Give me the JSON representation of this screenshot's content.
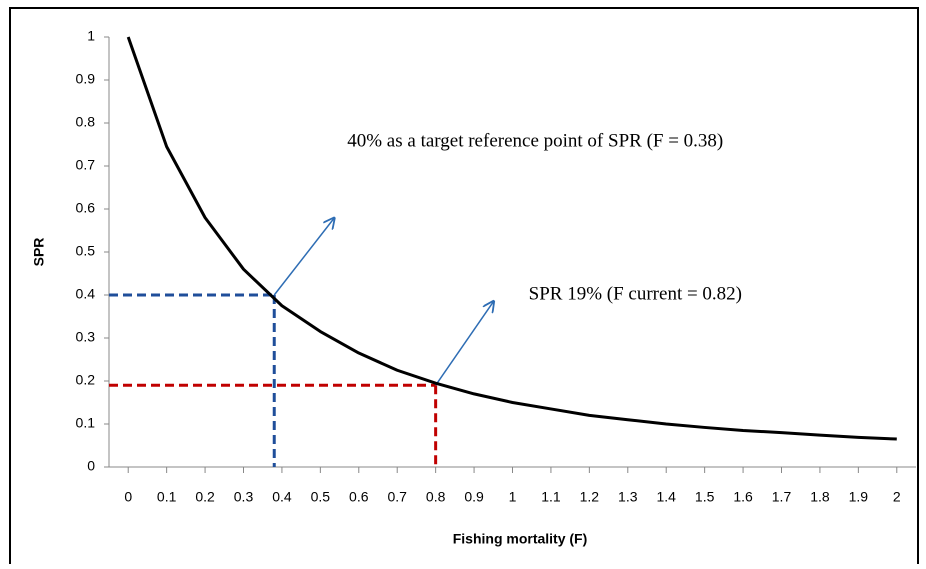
{
  "chart_data": {
    "type": "line",
    "x": [
      0,
      0.1,
      0.2,
      0.3,
      0.4,
      0.5,
      0.6,
      0.7,
      0.8,
      0.9,
      1,
      1.1,
      1.2,
      1.3,
      1.4,
      1.5,
      1.6,
      1.7,
      1.8,
      1.9,
      2
    ],
    "series": [
      {
        "color": "#000000",
        "values": [
          1,
          0.745,
          0.58,
          0.46,
          0.375,
          0.315,
          0.265,
          0.225,
          0.195,
          0.17,
          0.15,
          0.135,
          0.12,
          0.11,
          0.1,
          0.092,
          0.085,
          0.08,
          0.074,
          0.069,
          0.065
        ]
      }
    ],
    "xlabel": "Fishing mortality (F)",
    "ylabel": "SPR",
    "xlim": [
      -0.05,
      2.05
    ],
    "xticks": [
      0,
      0.1,
      0.2,
      0.3,
      0.4,
      0.5,
      0.6,
      0.7,
      0.8,
      0.9,
      1,
      1.1,
      1.2,
      1.3,
      1.4,
      1.5,
      1.6,
      1.7,
      1.8,
      1.9,
      2
    ],
    "ylim": [
      0,
      1
    ],
    "yticks": [
      0,
      0.1,
      0.2,
      0.3,
      0.4,
      0.5,
      0.6,
      0.7,
      0.8,
      0.9,
      1
    ],
    "reference_points": [
      {
        "x": 0.38,
        "y": 0.4,
        "color": "#1f4e9a",
        "annotation": "40% as a target reference point of SPR (F = 0.38)"
      },
      {
        "x": 0.8,
        "y": 0.19,
        "color": "#c00000",
        "annotation": "SPR 19% (F current = 0.82)"
      }
    ]
  }
}
